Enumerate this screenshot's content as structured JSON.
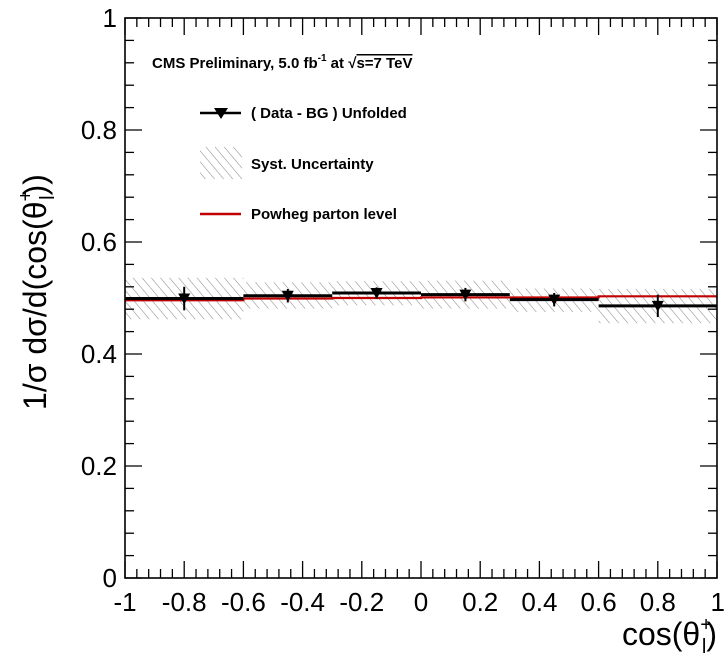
{
  "chart_data": {
    "type": "line",
    "title": "CMS Preliminary, 5.0 fb",
    "title_sup": "-1",
    "title_rest": " at ",
    "title_sqrt": "√",
    "title_energy": "s=7 TeV",
    "xlabel_main": "cos(θ",
    "xlabel_sup": "+",
    "xlabel_sub": "l",
    "xlabel_close": ")",
    "ylabel_main": "1/σ dσ/d(cos(θ",
    "ylabel_sup": "+",
    "ylabel_sub": "l",
    "ylabel_close": "))",
    "xlim": [
      -1,
      1
    ],
    "ylim": [
      0,
      1
    ],
    "x_ticks": [
      "-1",
      "-0.8",
      "-0.6",
      "-0.4",
      "-0.2",
      "0",
      "0.2",
      "0.4",
      "0.6",
      "0.8",
      "1"
    ],
    "y_ticks": [
      "0",
      "0.2",
      "0.4",
      "0.6",
      "0.8",
      "1"
    ],
    "bin_edges": [
      -1,
      -0.6,
      -0.3,
      0,
      0.3,
      0.6,
      1
    ],
    "legend_placement": "top-left",
    "series": [
      {
        "name": "( Data - BG ) Unfolded",
        "kind": "data",
        "color": "#000000",
        "x": [
          -0.8,
          -0.45,
          -0.15,
          0.15,
          0.45,
          0.8
        ],
        "values": [
          0.499,
          0.504,
          0.509,
          0.506,
          0.497,
          0.486
        ],
        "err": [
          0.021,
          0.012,
          0.01,
          0.012,
          0.012,
          0.02
        ]
      },
      {
        "name": "Syst. Uncertainty",
        "kind": "band",
        "color": "#9a9a9a",
        "low": [
          0.462,
          0.481,
          0.487,
          0.481,
          0.475,
          0.455
        ],
        "high": [
          0.536,
          0.528,
          0.53,
          0.531,
          0.517,
          0.516
        ]
      },
      {
        "name": "Powheg parton level",
        "kind": "model",
        "color": "#c00000",
        "values": [
          0.496,
          0.499,
          0.5,
          0.501,
          0.501,
          0.503
        ]
      }
    ]
  }
}
